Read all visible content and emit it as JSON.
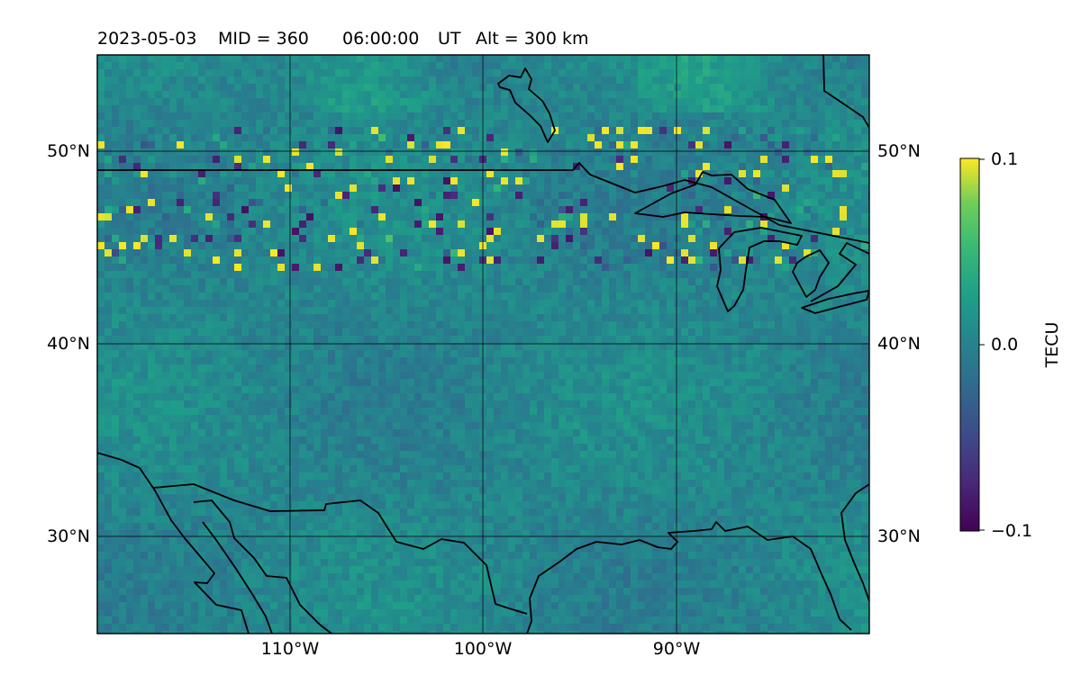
{
  "header": {
    "date": "2023-05-03",
    "mid": "MID = 360",
    "time": "06:00:00",
    "ut": "UT",
    "alt": "Alt = 300 km"
  },
  "map": {
    "lon_range": [
      -120,
      -80
    ],
    "lat_range": [
      25,
      55
    ],
    "lat_labels_left": [
      "50°N",
      "40°N",
      "30°N"
    ],
    "lat_labels_right": [
      "50°N",
      "40°N",
      "30°N"
    ],
    "lon_labels": [
      "110°W",
      "100°W",
      "90°W"
    ],
    "lat_gridlines": [
      50,
      40,
      30
    ],
    "lon_gridlines": [
      -110,
      -100,
      -90
    ],
    "colormap": "viridis",
    "background_level": 0.0,
    "anomaly_band_latitudes": [
      44,
      51
    ]
  },
  "colorbar": {
    "label": "TECU",
    "ticks": [
      "0.1",
      "0.0",
      "−0.1"
    ],
    "vmin": -0.1,
    "vmax": 0.1
  },
  "colors": {
    "viridis_low": "#440154",
    "viridis_mid": "#21918c",
    "viridis_high": "#fde725",
    "coastline": "#000000"
  }
}
